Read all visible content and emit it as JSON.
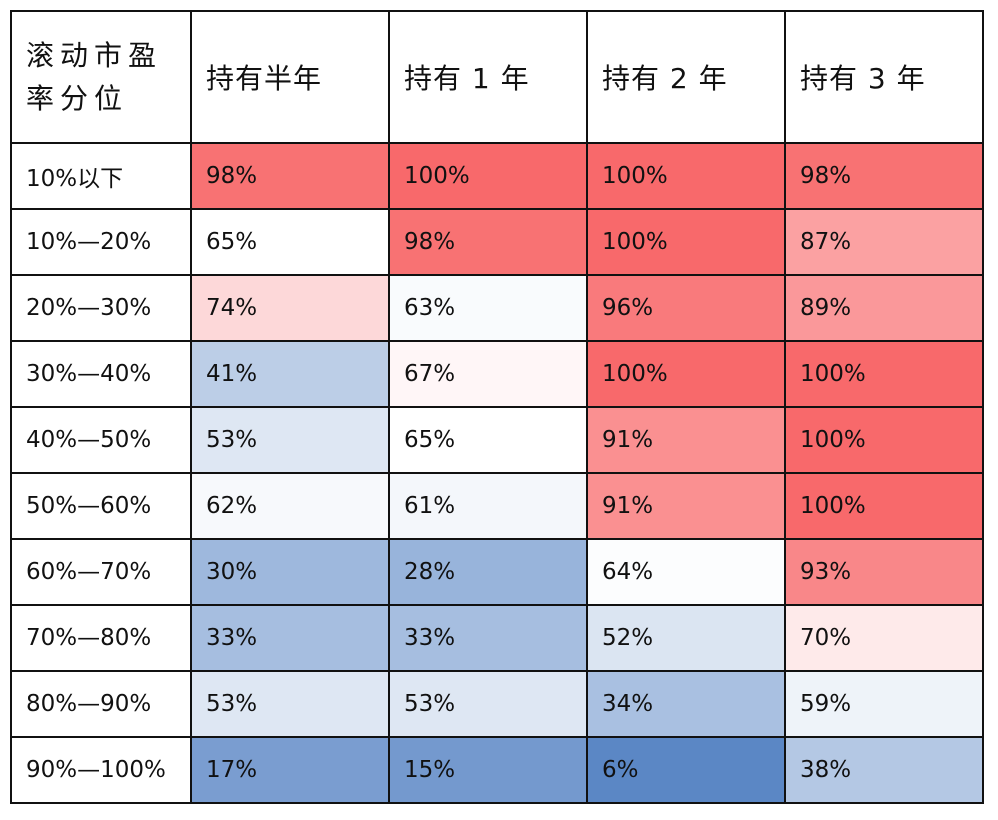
{
  "chart_data": {
    "type": "heatmap",
    "corner_header": "滚动市盈率分位",
    "columns": [
      "持有半年",
      "持有 1 年",
      "持有 2 年",
      "持有 3 年"
    ],
    "rows": [
      "10%以下",
      "10%—20%",
      "20%—30%",
      "30%—40%",
      "40%—50%",
      "50%—60%",
      "60%—70%",
      "70%—80%",
      "80%—90%",
      "90%—100%"
    ],
    "values": [
      [
        98,
        100,
        100,
        98
      ],
      [
        65,
        98,
        100,
        87
      ],
      [
        74,
        63,
        96,
        89
      ],
      [
        41,
        67,
        100,
        100
      ],
      [
        53,
        65,
        91,
        100
      ],
      [
        62,
        61,
        91,
        100
      ],
      [
        30,
        28,
        64,
        93
      ],
      [
        33,
        33,
        52,
        70
      ],
      [
        53,
        53,
        34,
        59
      ],
      [
        17,
        15,
        6,
        38
      ]
    ],
    "value_suffix": "%",
    "color_scale": {
      "low": "#5b87c5",
      "mid": "#ffffff",
      "high": "#f8696b"
    }
  }
}
